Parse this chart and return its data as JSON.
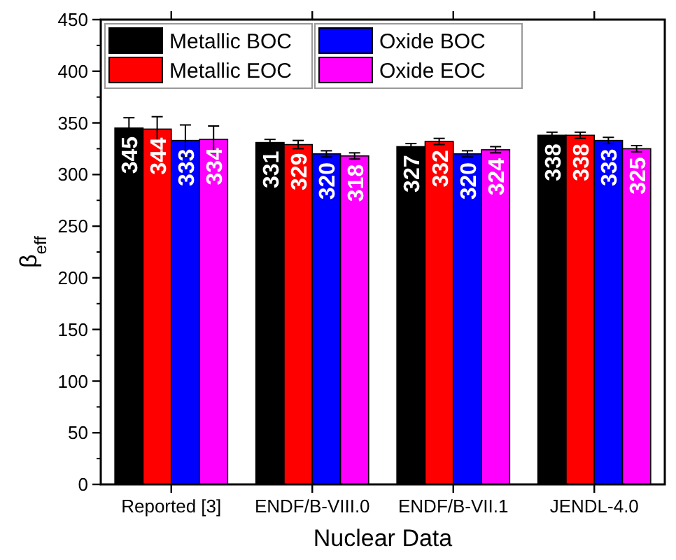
{
  "chart_data": {
    "type": "bar",
    "xlabel": "Nuclear Data",
    "ylabel": "β$_{eff}$",
    "categories": [
      "Reported [3]",
      "ENDF/B-VIII.0",
      "ENDF/B-VII.1",
      "JENDL-4.0"
    ],
    "series": [
      {
        "name": "Metallic BOC",
        "color": "#000000",
        "values": [
          345,
          331,
          327,
          338
        ],
        "errors": [
          10,
          3,
          3,
          3
        ]
      },
      {
        "name": "Metallic EOC",
        "color": "#ff0000",
        "values": [
          344,
          329,
          332,
          338
        ],
        "errors": [
          12,
          4,
          3,
          3
        ]
      },
      {
        "name": "Oxide BOC",
        "color": "#0000ff",
        "values": [
          333,
          320,
          320,
          333
        ],
        "errors": [
          15,
          3,
          3,
          3
        ]
      },
      {
        "name": "Oxide EOC",
        "color": "#ff00ff",
        "values": [
          334,
          318,
          324,
          325
        ],
        "errors": [
          13,
          3,
          3,
          3
        ]
      }
    ],
    "ylim": [
      0,
      450
    ],
    "yticks": [
      0,
      50,
      100,
      150,
      200,
      250,
      300,
      350,
      400,
      450
    ],
    "data_labels": true,
    "legend": "top left",
    "grid": false
  }
}
